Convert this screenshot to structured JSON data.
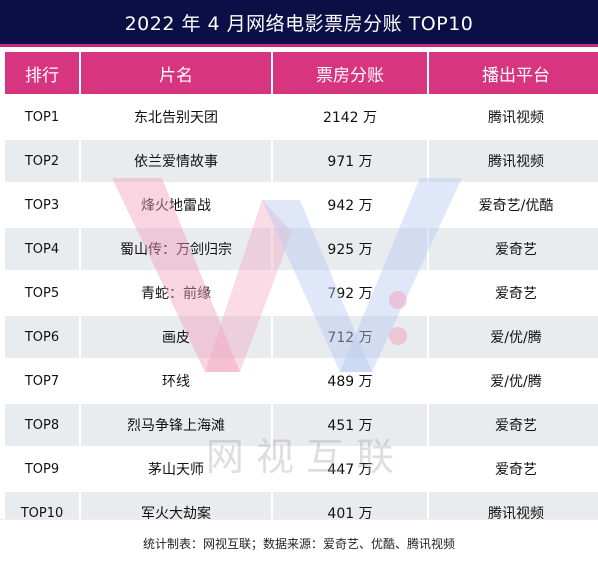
{
  "title": "2022 年 4 月网络电影票房分账 TOP10",
  "headers": [
    "排行",
    "片名",
    "票房分账",
    "播出平台"
  ],
  "rows": [
    {
      "rank": "TOP1",
      "name": "东北告别天团",
      "box": "2142 万",
      "platform": "腾讯视频"
    },
    {
      "rank": "TOP2",
      "name": "依兰爱情故事",
      "box": "971 万",
      "platform": "腾讯视频"
    },
    {
      "rank": "TOP3",
      "name": "烽火地雷战",
      "box": "942 万",
      "platform": "爱奇艺/优酷"
    },
    {
      "rank": "TOP4",
      "name": "蜀山传：万剑归宗",
      "box": "925 万",
      "platform": "爱奇艺"
    },
    {
      "rank": "TOP5",
      "name": "青蛇：前缘",
      "box": "792 万",
      "platform": "爱奇艺"
    },
    {
      "rank": "TOP6",
      "name": "画皮",
      "box": "712 万",
      "platform": "爱/优/腾"
    },
    {
      "rank": "TOP7",
      "name": "环线",
      "box": "489 万",
      "platform": "爱/优/腾"
    },
    {
      "rank": "TOP8",
      "name": "烈马争锋上海滩",
      "box": "451 万",
      "platform": "爱奇艺"
    },
    {
      "rank": "TOP9",
      "name": "茅山天师",
      "box": "447 万",
      "platform": "爱奇艺"
    },
    {
      "rank": "TOP10",
      "name": "军火大劫案",
      "box": "401 万",
      "platform": "腾讯视频"
    }
  ],
  "watermark_text": "网 视 互 联",
  "footer": "统计制表：网视互联；数据来源：爱奇艺、优酷、腾讯视频",
  "colors": {
    "title_bg": "#0b0f46",
    "header_bg": "#d7357f",
    "stripe_bg": "#e1e4e8",
    "watermark_pink": "#f2a0bd",
    "watermark_blue": "#b9c9f0"
  }
}
